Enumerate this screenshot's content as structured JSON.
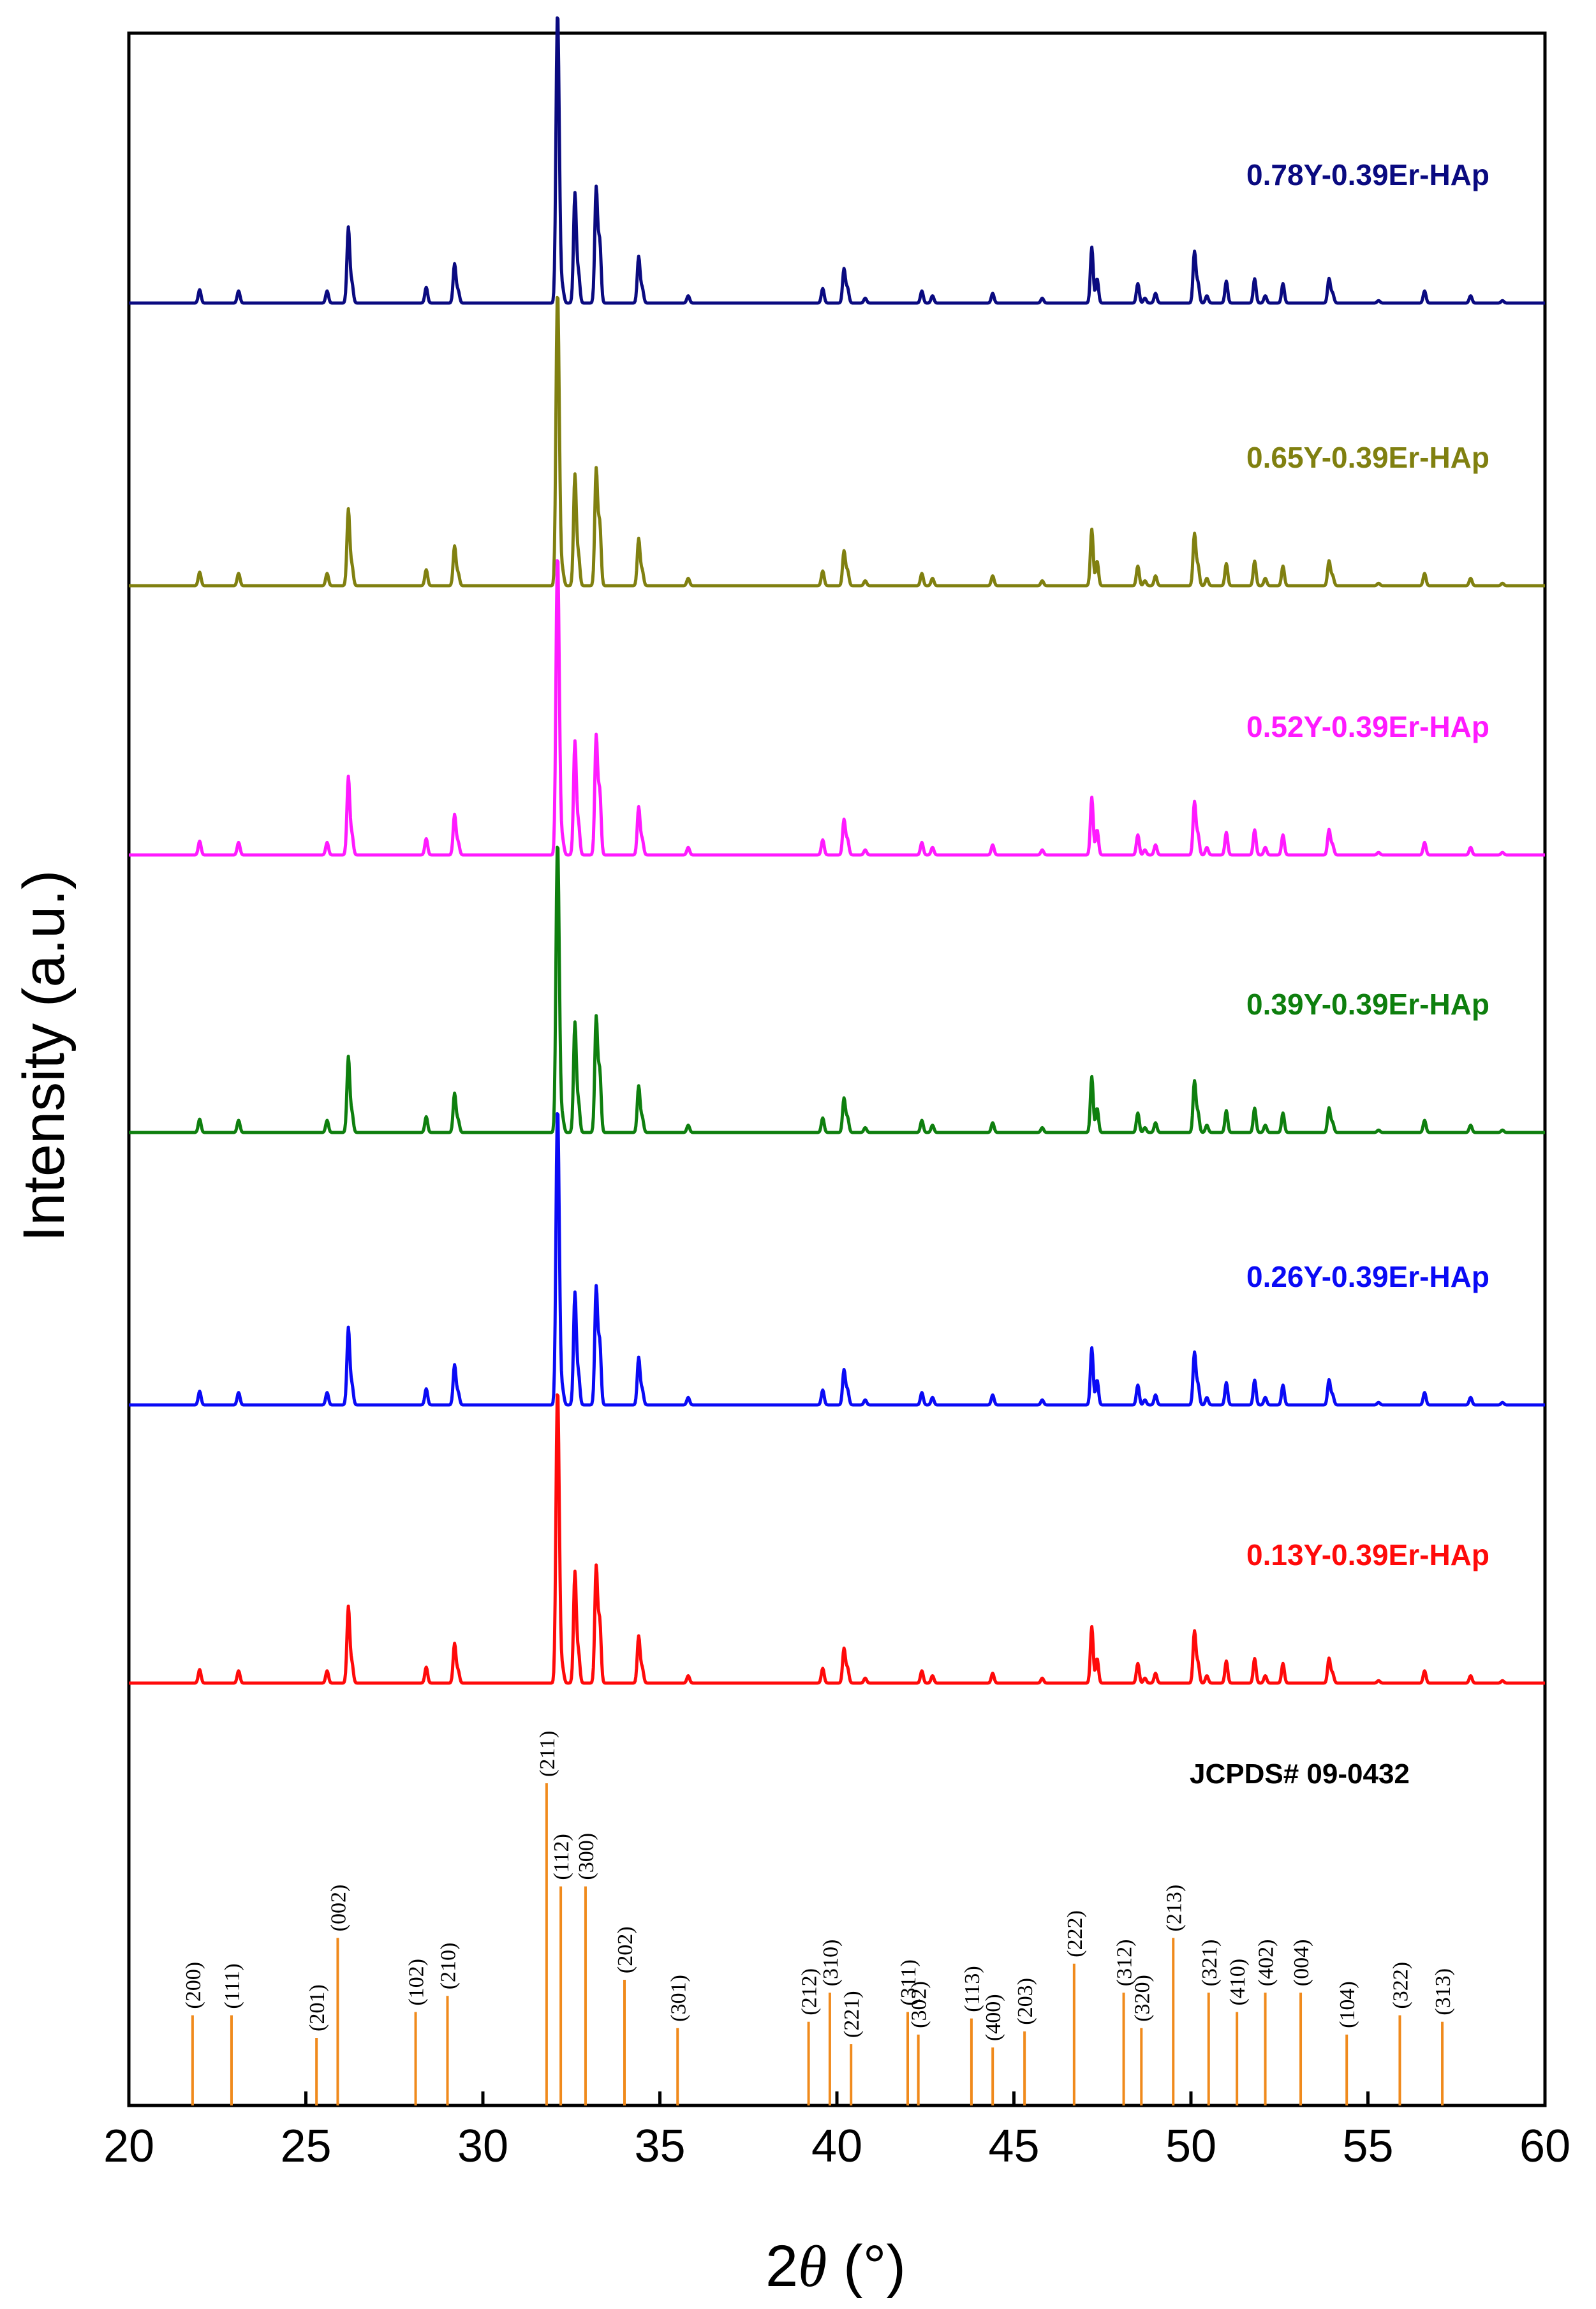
{
  "chart_data": {
    "type": "line",
    "xlabel_prefix": "2",
    "xlabel_symbol": "θ",
    "xlabel_unit": " (°)",
    "ylabel": "Intensity (a.u.)",
    "xlim": [
      20,
      60
    ],
    "xticks": [
      20,
      25,
      30,
      35,
      40,
      45,
      50,
      55,
      60
    ],
    "grid": false,
    "series": [
      {
        "name": "0.78Y-0.39Er-HAp",
        "color": "#0a0a80",
        "scale": 0.94
      },
      {
        "name": "0.65Y-0.39Er-HAp",
        "color": "#808010",
        "scale": 0.95
      },
      {
        "name": "0.52Y-0.39Er-HAp",
        "color": "#ff1aff",
        "scale": 0.97
      },
      {
        "name": "0.39Y-0.39Er-HAp",
        "color": "#0e7f0e",
        "scale": 0.94
      },
      {
        "name": "0.26Y-0.39Er-HAp",
        "color": "#0a0af5",
        "scale": 0.96
      },
      {
        "name": "0.13Y-0.39Er-HAp",
        "color": "#ff0a0a",
        "scale": 0.95
      }
    ],
    "peaks": [
      {
        "x": 22.0,
        "y": 5.5
      },
      {
        "x": 23.1,
        "y": 5
      },
      {
        "x": 25.6,
        "y": 5
      },
      {
        "x": 26.2,
        "y": 31
      },
      {
        "x": 26.3,
        "y": 8
      },
      {
        "x": 28.4,
        "y": 6.5
      },
      {
        "x": 29.2,
        "y": 16
      },
      {
        "x": 29.3,
        "y": 5
      },
      {
        "x": 32.1,
        "y": 100
      },
      {
        "x": 32.15,
        "y": 38
      },
      {
        "x": 32.25,
        "y": 6
      },
      {
        "x": 32.6,
        "y": 45
      },
      {
        "x": 32.7,
        "y": 12
      },
      {
        "x": 33.2,
        "y": 47
      },
      {
        "x": 33.3,
        "y": 25
      },
      {
        "x": 34.4,
        "y": 19
      },
      {
        "x": 34.5,
        "y": 6
      },
      {
        "x": 35.8,
        "y": 3
      },
      {
        "x": 39.6,
        "y": 6
      },
      {
        "x": 40.2,
        "y": 14
      },
      {
        "x": 40.3,
        "y": 6
      },
      {
        "x": 40.8,
        "y": 2
      },
      {
        "x": 42.4,
        "y": 5
      },
      {
        "x": 42.7,
        "y": 3
      },
      {
        "x": 44.4,
        "y": 4
      },
      {
        "x": 45.8,
        "y": 2
      },
      {
        "x": 47.2,
        "y": 23
      },
      {
        "x": 47.35,
        "y": 10
      },
      {
        "x": 48.5,
        "y": 8
      },
      {
        "x": 48.7,
        "y": 2
      },
      {
        "x": 49.0,
        "y": 4
      },
      {
        "x": 50.1,
        "y": 21
      },
      {
        "x": 50.2,
        "y": 8
      },
      {
        "x": 50.45,
        "y": 3
      },
      {
        "x": 51.0,
        "y": 9
      },
      {
        "x": 51.8,
        "y": 10
      },
      {
        "x": 52.1,
        "y": 3
      },
      {
        "x": 52.6,
        "y": 8
      },
      {
        "x": 53.9,
        "y": 10
      },
      {
        "x": 54.0,
        "y": 4
      },
      {
        "x": 55.3,
        "y": 1
      },
      {
        "x": 56.6,
        "y": 5
      },
      {
        "x": 57.9,
        "y": 3
      },
      {
        "x": 58.8,
        "y": 1
      }
    ],
    "reference": {
      "title": "JCPDS# 09-0432",
      "color": "#f08a1c",
      "lines": [
        {
          "x": 21.8,
          "y": 28,
          "hkl": "(200)"
        },
        {
          "x": 22.9,
          "y": 28,
          "hkl": "(111)"
        },
        {
          "x": 25.3,
          "y": 21,
          "hkl": "(201)"
        },
        {
          "x": 25.9,
          "y": 52,
          "hkl": "(002)"
        },
        {
          "x": 28.1,
          "y": 29,
          "hkl": "(102)"
        },
        {
          "x": 29.0,
          "y": 34,
          "hkl": "(210)"
        },
        {
          "x": 31.8,
          "y": 100,
          "hkl": "(211)"
        },
        {
          "x": 32.2,
          "y": 68,
          "hkl": "(112)"
        },
        {
          "x": 32.9,
          "y": 68,
          "hkl": "(300)"
        },
        {
          "x": 34.0,
          "y": 39,
          "hkl": "(202)"
        },
        {
          "x": 35.5,
          "y": 24,
          "hkl": "(301)"
        },
        {
          "x": 39.2,
          "y": 26,
          "hkl": "(212)"
        },
        {
          "x": 39.8,
          "y": 35,
          "hkl": "(310)"
        },
        {
          "x": 40.4,
          "y": 19,
          "hkl": "(221)"
        },
        {
          "x": 42.0,
          "y": 29,
          "hkl": "(311)"
        },
        {
          "x": 42.3,
          "y": 22,
          "hkl": "(302)"
        },
        {
          "x": 43.8,
          "y": 27,
          "hkl": "(113)"
        },
        {
          "x": 44.4,
          "y": 18,
          "hkl": "(400)"
        },
        {
          "x": 45.3,
          "y": 23,
          "hkl": "(203)"
        },
        {
          "x": 46.7,
          "y": 44,
          "hkl": "(222)"
        },
        {
          "x": 48.1,
          "y": 35,
          "hkl": "(312)"
        },
        {
          "x": 48.6,
          "y": 24,
          "hkl": "(320)"
        },
        {
          "x": 49.5,
          "y": 52,
          "hkl": "(213)"
        },
        {
          "x": 50.5,
          "y": 35,
          "hkl": "(321)"
        },
        {
          "x": 51.3,
          "y": 29,
          "hkl": "(410)"
        },
        {
          "x": 52.1,
          "y": 35,
          "hkl": "(402)"
        },
        {
          "x": 53.1,
          "y": 35,
          "hkl": "(004)"
        },
        {
          "x": 54.4,
          "y": 22,
          "hkl": "(104)"
        },
        {
          "x": 55.9,
          "y": 28,
          "hkl": "(322)"
        },
        {
          "x": 57.1,
          "y": 26,
          "hkl": "(313)"
        }
      ]
    }
  }
}
